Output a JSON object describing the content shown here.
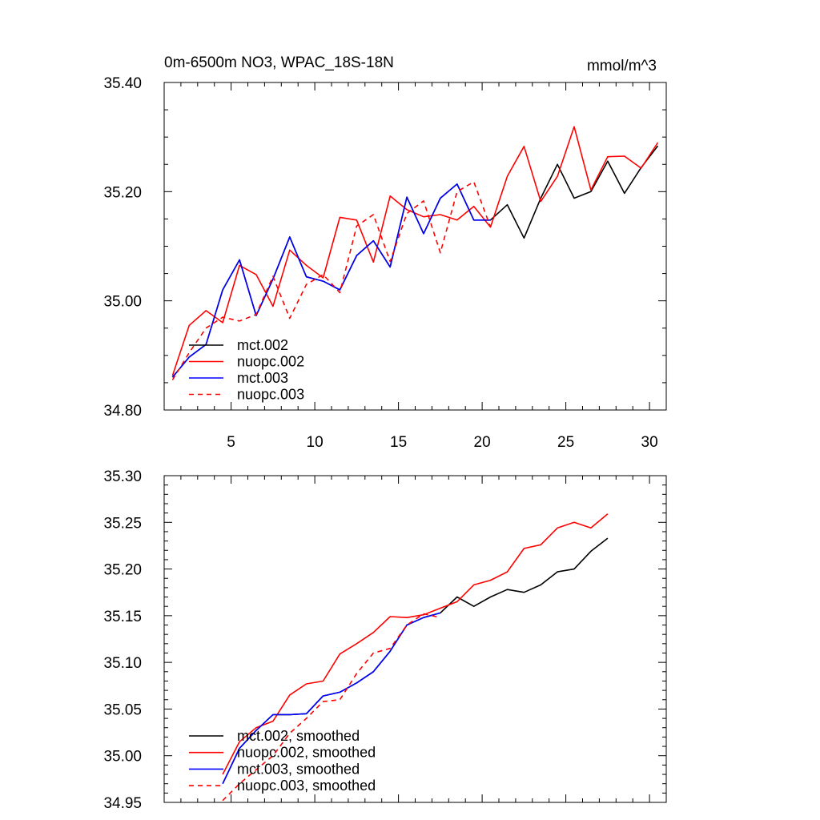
{
  "chart_data": [
    {
      "type": "line",
      "title": "0m-6500m NO3, WPAC_18S-18N",
      "units": "mmol/m^3",
      "xlim": [
        1,
        31
      ],
      "ylim": [
        34.8,
        35.4
      ],
      "xticks": [
        5,
        10,
        15,
        20,
        25,
        30
      ],
      "yticks": [
        34.8,
        35.0,
        35.2,
        35.4
      ],
      "ytick_labels": [
        "34.80",
        "35.00",
        "35.20",
        "35.40"
      ],
      "legend_position": "bottom-left",
      "series": [
        {
          "name": "mct.002",
          "color": "#000000",
          "dash": false,
          "x": [
            1.5,
            2.5,
            3.5,
            4.5,
            5.5,
            6.5,
            7.5,
            8.5,
            9.5,
            10.5,
            11.5,
            12.5,
            13.5,
            14.5,
            15.5,
            16.5,
            17.5,
            18.5,
            19.5,
            20.5,
            21.5,
            22.5,
            23.5,
            24.5,
            25.5,
            26.5,
            27.5,
            28.5,
            29.5,
            30.5
          ],
          "y": [
            34.86,
            34.897,
            34.92,
            35.02,
            35.075,
            34.973,
            35.04,
            35.117,
            35.044,
            35.036,
            35.02,
            35.083,
            35.11,
            35.062,
            35.19,
            35.123,
            35.188,
            35.214,
            35.148,
            35.148,
            35.176,
            35.115,
            35.188,
            35.25,
            35.188,
            35.2,
            35.256,
            35.197,
            35.244,
            35.284
          ]
        },
        {
          "name": "nuopc.002",
          "color": "#ff0000",
          "dash": false,
          "x": [
            1.5,
            2.5,
            3.5,
            4.5,
            5.5,
            6.5,
            7.5,
            8.5,
            9.5,
            10.5,
            11.5,
            12.5,
            13.5,
            14.5,
            15.5,
            16.5,
            17.5,
            18.5,
            19.5,
            20.5,
            21.5,
            22.5,
            23.5,
            24.5,
            25.5,
            26.5,
            27.5,
            28.5,
            29.5,
            30.5
          ],
          "y": [
            34.863,
            34.955,
            34.982,
            34.96,
            35.065,
            35.048,
            34.99,
            35.093,
            35.065,
            35.042,
            35.153,
            35.148,
            35.071,
            35.192,
            35.167,
            35.154,
            35.158,
            35.148,
            35.173,
            35.135,
            35.228,
            35.283,
            35.182,
            35.228,
            35.319,
            35.203,
            35.264,
            35.265,
            35.243,
            35.29
          ]
        },
        {
          "name": "mct.003",
          "color": "#0000ff",
          "dash": false,
          "x": [
            1.5,
            2.5,
            3.5,
            4.5,
            5.5,
            6.5,
            7.5,
            8.5,
            9.5,
            10.5,
            11.5,
            12.5,
            13.5,
            14.5,
            15.5,
            16.5,
            17.5,
            18.5,
            19.5,
            20.5
          ],
          "y": [
            34.86,
            34.897,
            34.92,
            35.02,
            35.075,
            34.973,
            35.04,
            35.117,
            35.044,
            35.036,
            35.02,
            35.083,
            35.11,
            35.062,
            35.19,
            35.123,
            35.188,
            35.214,
            35.148,
            35.148
          ]
        },
        {
          "name": "nuopc.003",
          "color": "#ff0000",
          "dash": true,
          "x": [
            1.5,
            2.5,
            3.5,
            4.5,
            5.5,
            6.5,
            7.5,
            8.5,
            9.5,
            10.5,
            11.5,
            12.5,
            13.5,
            14.5,
            15.5,
            16.5,
            17.5,
            18.5,
            19.5,
            20.5
          ],
          "y": [
            34.855,
            34.905,
            34.95,
            34.97,
            34.963,
            34.975,
            35.045,
            34.968,
            35.03,
            35.048,
            35.015,
            35.137,
            35.158,
            35.072,
            35.16,
            35.183,
            35.088,
            35.2,
            35.218,
            35.135
          ]
        }
      ]
    },
    {
      "type": "line",
      "xlim": [
        1,
        31
      ],
      "ylim": [
        34.95,
        35.3
      ],
      "xticks": [
        5,
        10,
        15,
        20,
        25,
        30
      ],
      "yticks": [
        34.95,
        35.0,
        35.05,
        35.1,
        35.15,
        35.2,
        35.25,
        35.3
      ],
      "ytick_labels": [
        "34.95",
        "35.00",
        "35.05",
        "35.10",
        "35.15",
        "35.20",
        "35.25",
        "35.30"
      ],
      "legend_position": "bottom-left",
      "series": [
        {
          "name": "mct.002, smoothed",
          "color": "#000000",
          "dash": false,
          "x": [
            4.5,
            5.5,
            6.5,
            7.5,
            8.5,
            9.5,
            10.5,
            11.5,
            12.5,
            13.5,
            14.5,
            15.5,
            16.5,
            17.5,
            18.5,
            19.5,
            20.5,
            21.5,
            22.5,
            23.5,
            24.5,
            25.5,
            26.5,
            27.5
          ],
          "y": [
            34.97,
            35.008,
            35.027,
            35.044,
            35.044,
            35.045,
            35.064,
            35.068,
            35.078,
            35.09,
            35.112,
            35.14,
            35.148,
            35.153,
            35.17,
            35.16,
            35.17,
            35.178,
            35.175,
            35.183,
            35.197,
            35.2,
            35.219,
            35.233
          ]
        },
        {
          "name": "nuopc.002, smoothed",
          "color": "#ff0000",
          "dash": false,
          "x": [
            4.5,
            5.5,
            6.5,
            7.5,
            8.5,
            9.5,
            10.5,
            11.5,
            12.5,
            13.5,
            14.5,
            15.5,
            16.5,
            17.5,
            18.5,
            19.5,
            20.5,
            21.5,
            22.5,
            23.5,
            24.5,
            25.5,
            26.5,
            27.5
          ],
          "y": [
            34.98,
            35.015,
            35.03,
            35.037,
            35.065,
            35.077,
            35.08,
            35.109,
            35.12,
            35.132,
            35.149,
            35.148,
            35.151,
            35.158,
            35.165,
            35.183,
            35.188,
            35.197,
            35.222,
            35.226,
            35.244,
            35.25,
            35.244,
            35.259
          ]
        },
        {
          "name": "mct.003, smoothed",
          "color": "#0000ff",
          "dash": false,
          "x": [
            4.5,
            5.5,
            6.5,
            7.5,
            8.5,
            9.5,
            10.5,
            11.5,
            12.5,
            13.5,
            14.5,
            15.5,
            16.5,
            17.5
          ],
          "y": [
            34.97,
            35.008,
            35.027,
            35.044,
            35.044,
            35.045,
            35.064,
            35.068,
            35.078,
            35.09,
            35.112,
            35.14,
            35.148,
            35.153
          ]
        },
        {
          "name": "nuopc.003, smoothed",
          "color": "#ff0000",
          "dash": true,
          "x": [
            4.5,
            5.5,
            6.5,
            7.5,
            8.5,
            9.5,
            10.5,
            11.5,
            12.5,
            13.5,
            14.5,
            15.5,
            16.5,
            17.5
          ],
          "y": [
            34.952,
            34.97,
            34.985,
            35.0,
            35.024,
            35.04,
            35.058,
            35.06,
            35.088,
            35.11,
            35.115,
            35.14,
            35.152,
            35.148
          ]
        }
      ]
    }
  ]
}
